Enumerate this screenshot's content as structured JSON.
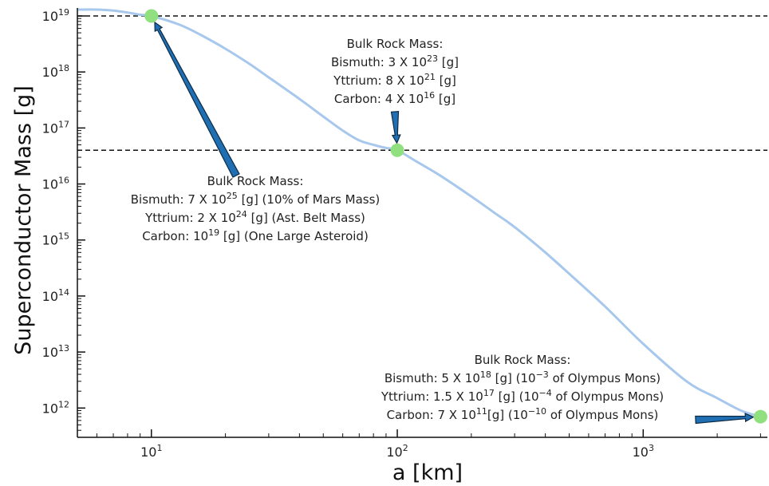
{
  "chart_data": {
    "type": "line",
    "xlabel": "a [km]",
    "ylabel": "Superconductor Mass [g]",
    "xscale": "log",
    "yscale": "log",
    "xlim": [
      5,
      3200
    ],
    "ylim": [
      300000000000.0,
      1.3e+19
    ],
    "x_ticks": [
      {
        "value": 10,
        "base": "10",
        "exp": "1"
      },
      {
        "value": 100,
        "base": "10",
        "exp": "2"
      },
      {
        "value": 1000,
        "base": "10",
        "exp": "3"
      }
    ],
    "y_ticks": [
      {
        "value": 1000000000000.0,
        "base": "10",
        "exp": "12"
      },
      {
        "value": 10000000000000.0,
        "base": "10",
        "exp": "13"
      },
      {
        "value": 100000000000000.0,
        "base": "10",
        "exp": "14"
      },
      {
        "value": 1000000000000000.0,
        "base": "10",
        "exp": "15"
      },
      {
        "value": 1e+16,
        "base": "10",
        "exp": "16"
      },
      {
        "value": 1e+17,
        "base": "10",
        "exp": "17"
      },
      {
        "value": 1e+18,
        "base": "10",
        "exp": "18"
      },
      {
        "value": 1e+19,
        "base": "10",
        "exp": "19"
      }
    ],
    "series": [
      {
        "color": "#a7c8ec",
        "x": [
          5,
          6,
          7,
          8,
          9,
          10,
          13,
          16,
          20,
          25,
          30,
          40,
          50,
          60,
          70,
          80,
          90,
          100,
          120,
          150,
          200,
          250,
          300,
          400,
          500,
          700,
          1000,
          1500,
          2000,
          2500,
          3000
        ],
        "y": [
          1.3e+19,
          1.3e+19,
          1.25e+19,
          1.15e+19,
          1.05e+19,
          1e+19,
          7e+18,
          4.5e+18,
          2.6e+18,
          1.4e+18,
          8e+17,
          3.3e+17,
          1.6e+17,
          9e+16,
          6e+16,
          5e+16,
          4.4e+16,
          4e+16,
          2.5e+16,
          1.4e+16,
          6000000000000000.0,
          3000000000000000.0,
          1700000000000000.0,
          600000000000000.0,
          250000000000000.0,
          65000000000000.0,
          14000000000000.0,
          3000000000000.0,
          1500000000000.0,
          900000000000.0,
          700000000000.0
        ]
      }
    ],
    "markers": [
      {
        "x": 10,
        "y": 1e+19,
        "color": "#90e080"
      },
      {
        "x": 100,
        "y": 4e+16,
        "color": "#90e080"
      },
      {
        "x": 3000,
        "y": 700000000000.0,
        "color": "#90e080"
      }
    ],
    "hlines": [
      {
        "y": 1e+19,
        "style": "dashed"
      },
      {
        "y": 4e+16,
        "style": "dashed"
      }
    ],
    "annotations": [
      {
        "lines": [
          [
            {
              "t": "Bulk Rock Mass:"
            }
          ],
          [
            {
              "t": "Bismuth: 3 X 10"
            },
            {
              "t": "23",
              "sup": true
            },
            {
              "t": " [g]"
            }
          ],
          [
            {
              "t": "Yttrium: 8 X 10"
            },
            {
              "t": "21",
              "sup": true
            },
            {
              "t": " [g]"
            }
          ],
          [
            {
              "t": "Carbon: 4 X 10"
            },
            {
              "t": "16",
              "sup": true
            },
            {
              "t": " [g]"
            }
          ]
        ],
        "arrow_to": {
          "x": 100,
          "y": 4e+16
        }
      },
      {
        "lines": [
          [
            {
              "t": "Bulk Rock Mass:"
            }
          ],
          [
            {
              "t": "Bismuth: 7 X 10"
            },
            {
              "t": "25",
              "sup": true
            },
            {
              "t": " [g] (10% of Mars Mass)"
            }
          ],
          [
            {
              "t": "Yttrium: 2 X 10"
            },
            {
              "t": "24",
              "sup": true
            },
            {
              "t": " [g] (Ast. Belt Mass)"
            }
          ],
          [
            {
              "t": "Carbon:  10"
            },
            {
              "t": "19",
              "sup": true
            },
            {
              "t": " [g] (One Large Asteroid)"
            }
          ]
        ],
        "arrow_to": {
          "x": 10,
          "y": 1e+19
        }
      },
      {
        "lines": [
          [
            {
              "t": "Bulk Rock Mass:"
            }
          ],
          [
            {
              "t": "Bismuth: 5 X 10"
            },
            {
              "t": "18",
              "sup": true
            },
            {
              "t": " [g] (10"
            },
            {
              "t": "−3",
              "sup": true
            },
            {
              "t": " of Olympus Mons)"
            }
          ],
          [
            {
              "t": "Yttrium: 1.5 X 10"
            },
            {
              "t": "17",
              "sup": true
            },
            {
              "t": " [g] (10"
            },
            {
              "t": "−4",
              "sup": true
            },
            {
              "t": " of Olympus Mons)"
            }
          ],
          [
            {
              "t": "Carbon: 7 X 10"
            },
            {
              "t": "11",
              "sup": true
            },
            {
              "t": "[g] (10"
            },
            {
              "t": "−10",
              "sup": true
            },
            {
              "t": " of Olympus Mons)"
            }
          ]
        ],
        "arrow_to": {
          "x": 3000,
          "y": 700000000000.0
        }
      }
    ]
  }
}
